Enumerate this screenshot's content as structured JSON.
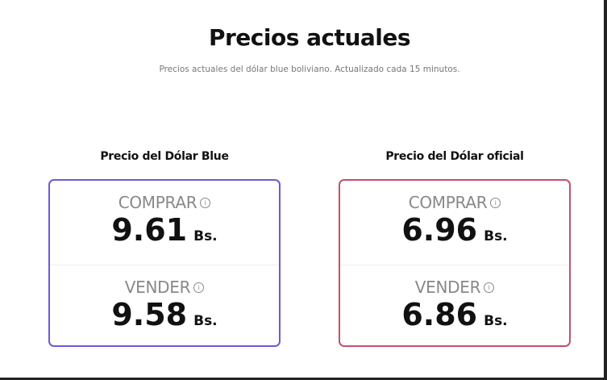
{
  "header": {
    "title": "Precios actuales",
    "subtitle": "Precios actuales del dólar blue boliviano. Actualizado cada 15 minutos."
  },
  "cards": [
    {
      "title": "Precio del Dólar Blue",
      "border_color": "#6b5bd6",
      "buy_label": "COMPRAR",
      "buy_value": "9.61",
      "sell_label": "VENDER",
      "sell_value": "9.58",
      "unit": "Bs.",
      "info_icon": "info-circle-icon"
    },
    {
      "title": "Precio del Dólar oficial",
      "border_color": "#c4506c",
      "buy_label": "COMPRAR",
      "buy_value": "6.96",
      "sell_label": "VENDER",
      "sell_value": "6.86",
      "unit": "Bs.",
      "info_icon": "info-circle-icon"
    }
  ]
}
